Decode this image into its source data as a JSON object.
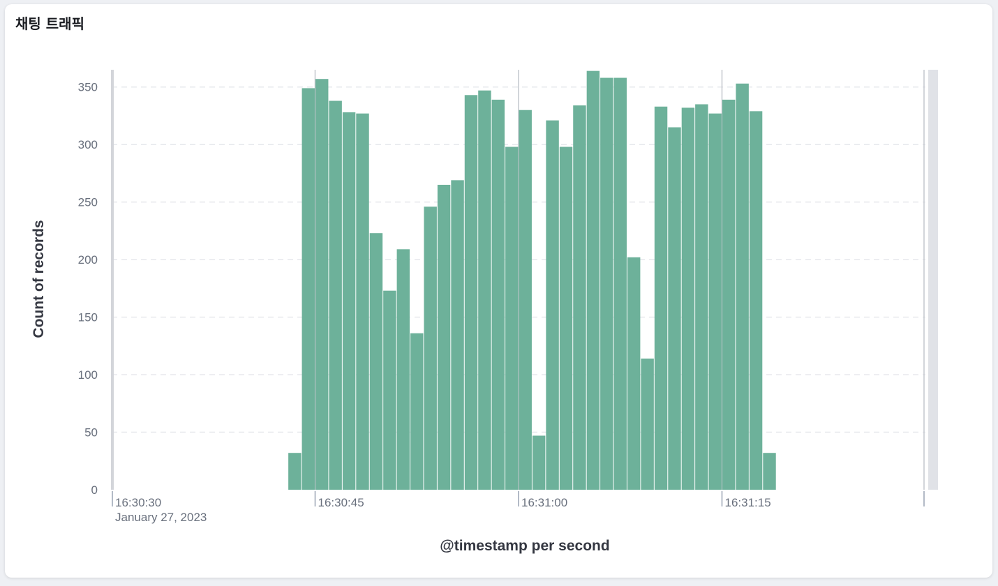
{
  "panel": {
    "title": "채팅 트래픽"
  },
  "chart_data": {
    "type": "bar",
    "xlabel": "@timestamp per second",
    "ylabel": "Count of records",
    "x_date_label": "January 27, 2023",
    "x_range": [
      "16:30:30",
      "16:31:30"
    ],
    "ylim": [
      0,
      365
    ],
    "y_ticks": [
      0,
      50,
      100,
      150,
      200,
      250,
      300,
      350
    ],
    "x_ticks": [
      {
        "time": "16:30:30",
        "label": "16:30:30"
      },
      {
        "time": "16:30:45",
        "label": "16:30:45"
      },
      {
        "time": "16:31:00",
        "label": "16:31:00"
      },
      {
        "time": "16:31:15",
        "label": "16:31:15"
      }
    ],
    "grid": true,
    "color": "#6db19a",
    "bars": [
      {
        "t": "16:30:44",
        "v": 32
      },
      {
        "t": "16:30:45",
        "v": 349
      },
      {
        "t": "16:30:46",
        "v": 357
      },
      {
        "t": "16:30:47",
        "v": 338
      },
      {
        "t": "16:30:48",
        "v": 328
      },
      {
        "t": "16:30:49",
        "v": 327
      },
      {
        "t": "16:30:50",
        "v": 223
      },
      {
        "t": "16:30:51",
        "v": 173
      },
      {
        "t": "16:30:52",
        "v": 209
      },
      {
        "t": "16:30:53",
        "v": 136
      },
      {
        "t": "16:30:54",
        "v": 246
      },
      {
        "t": "16:30:55",
        "v": 265
      },
      {
        "t": "16:30:56",
        "v": 269
      },
      {
        "t": "16:30:57",
        "v": 343
      },
      {
        "t": "16:30:58",
        "v": 347
      },
      {
        "t": "16:30:59",
        "v": 339
      },
      {
        "t": "16:31:00",
        "v": 298
      },
      {
        "t": "16:31:01",
        "v": 330
      },
      {
        "t": "16:31:02",
        "v": 47
      },
      {
        "t": "16:31:03",
        "v": 321
      },
      {
        "t": "16:31:04",
        "v": 298
      },
      {
        "t": "16:31:05",
        "v": 334
      },
      {
        "t": "16:31:06",
        "v": 364
      },
      {
        "t": "16:31:07",
        "v": 358
      },
      {
        "t": "16:31:08",
        "v": 358
      },
      {
        "t": "16:31:09",
        "v": 202
      },
      {
        "t": "16:31:10",
        "v": 114
      },
      {
        "t": "16:31:11",
        "v": 333
      },
      {
        "t": "16:31:12",
        "v": 315
      },
      {
        "t": "16:31:13",
        "v": 332
      },
      {
        "t": "16:31:14",
        "v": 335
      },
      {
        "t": "16:31:15",
        "v": 327
      },
      {
        "t": "16:31:16",
        "v": 339
      },
      {
        "t": "16:31:17",
        "v": 353
      },
      {
        "t": "16:31:18",
        "v": 329
      },
      {
        "t": "16:31:19",
        "v": 32
      }
    ]
  }
}
